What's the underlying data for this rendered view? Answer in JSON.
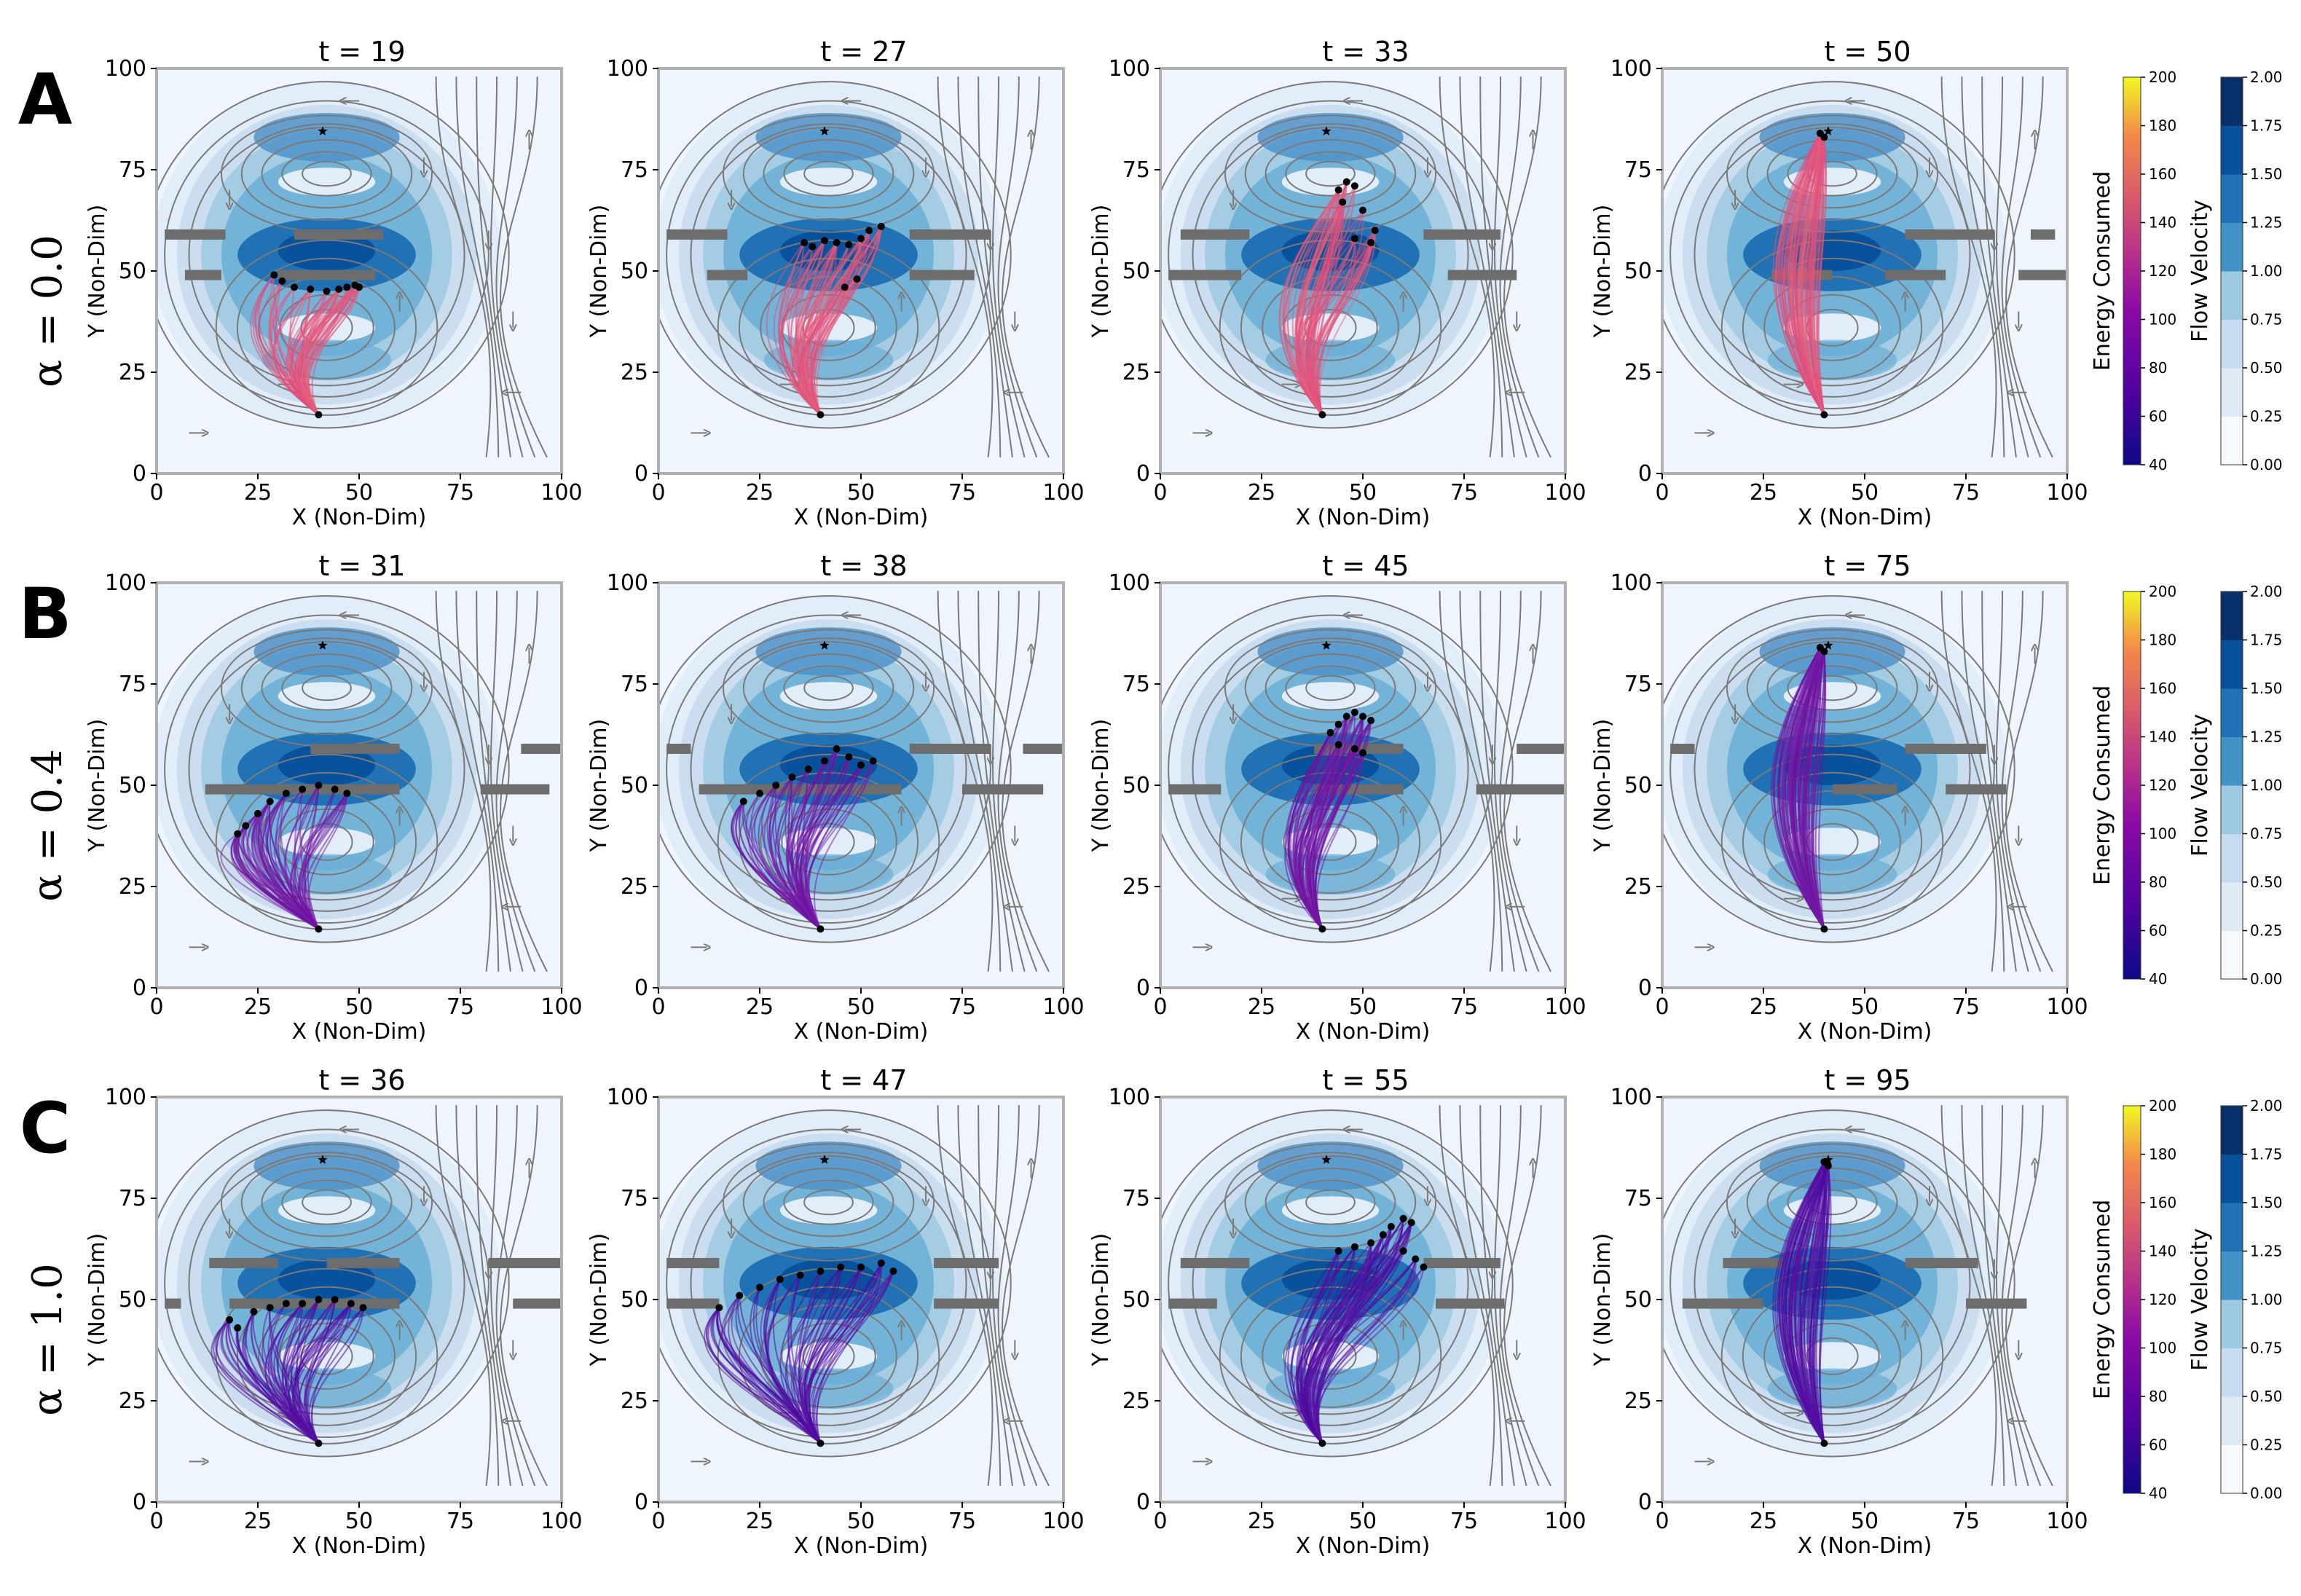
{
  "figure": {
    "xlabel": "X (Non-Dim)",
    "ylabel": "Y (Non-Dim)",
    "energy_colorbar_label": "Energy Consumed",
    "flow_colorbar_label": "Flow  Velocity",
    "energy_ticks": [
      "40",
      "60",
      "80",
      "100",
      "120",
      "140",
      "160",
      "180",
      "200"
    ],
    "flow_ticks": [
      "0.00",
      "0.25",
      "0.50",
      "0.75",
      "1.00",
      "1.25",
      "1.50",
      "1.75",
      "2.00"
    ],
    "axis_ticks": [
      "0",
      "25",
      "50",
      "75",
      "100"
    ]
  },
  "chart_data": [
    {
      "row": "A",
      "alpha_label": "α = 0.0",
      "type": "streamplot-trajectories",
      "xlim": [
        0,
        100
      ],
      "ylim": [
        0,
        100
      ],
      "start": [
        40,
        14.5
      ],
      "target": [
        41,
        84.5
      ],
      "colors": {
        "trajectory": "#de4f7e",
        "trajectory_alt": "#e8657a"
      },
      "panels": [
        {
          "title": "t = 19",
          "obstacles": [
            [
              2,
              17,
              59
            ],
            [
              34,
              56,
              59
            ],
            [
              7,
              16,
              49
            ],
            [
              30,
              54,
              49
            ]
          ],
          "front": [
            [
              29,
              49
            ],
            [
              31,
              47.5
            ],
            [
              34,
              46
            ],
            [
              38,
              45.5
            ],
            [
              42,
              45
            ],
            [
              45,
              45.5
            ],
            [
              47,
              46
            ],
            [
              49,
              46.5
            ],
            [
              50,
              46
            ]
          ],
          "fan_width": 11
        },
        {
          "title": "t = 27",
          "obstacles": [
            [
              2,
              17,
              59
            ],
            [
              62,
              82,
              59
            ],
            [
              12,
              22,
              49
            ],
            [
              62,
              78,
              49
            ]
          ],
          "front": [
            [
              36,
              57
            ],
            [
              38,
              56
            ],
            [
              41,
              57.5
            ],
            [
              44,
              57
            ],
            [
              47,
              56.5
            ],
            [
              50,
              58
            ],
            [
              52,
              60
            ],
            [
              55,
              61
            ],
            [
              49,
              48
            ],
            [
              46,
              46
            ]
          ],
          "fan_width": 13
        },
        {
          "title": "t = 33",
          "obstacles": [
            [
              5,
              22,
              59
            ],
            [
              65,
              84,
              59
            ],
            [
              102,
              103,
              59
            ],
            [
              2,
              20,
              49
            ],
            [
              71,
              88,
              49
            ]
          ],
          "front": [
            [
              44,
              70
            ],
            [
              46,
              72
            ],
            [
              48,
              71
            ],
            [
              45,
              67
            ],
            [
              50,
              65
            ],
            [
              53,
              60
            ],
            [
              48,
              58
            ],
            [
              52,
              57
            ]
          ],
          "fan_width": 16
        },
        {
          "title": "t = 50",
          "obstacles": [
            [
              60,
              82,
              59
            ],
            [
              91,
              97,
              59
            ],
            [
              27,
              42,
              49
            ],
            [
              55,
              70,
              49
            ],
            [
              88,
              100,
              49
            ]
          ],
          "front": [
            [
              39,
              84
            ],
            [
              40,
              83
            ]
          ],
          "fan_width": 18
        }
      ]
    },
    {
      "row": "B",
      "alpha_label": "α = 0.4",
      "type": "streamplot-trajectories",
      "xlim": [
        0,
        100
      ],
      "ylim": [
        0,
        100
      ],
      "start": [
        40,
        14.5
      ],
      "target": [
        41,
        84.5
      ],
      "colors": {
        "trajectory": "#6a13a1",
        "trajectory_alt": "#7b1fa8"
      },
      "panels": [
        {
          "title": "t = 31",
          "obstacles": [
            [
              38,
              60,
              59
            ],
            [
              90,
              100,
              59
            ],
            [
              12,
              60,
              49
            ],
            [
              80,
              97,
              49
            ]
          ],
          "front": [
            [
              20,
              38
            ],
            [
              22,
              40
            ],
            [
              25,
              43
            ],
            [
              28,
              46
            ],
            [
              32,
              48
            ],
            [
              36,
              49
            ],
            [
              40,
              50
            ],
            [
              44,
              49
            ],
            [
              47,
              48
            ]
          ],
          "fan_width": 12
        },
        {
          "title": "t = 38",
          "obstacles": [
            [
              2,
              8,
              59
            ],
            [
              62,
              82,
              59
            ],
            [
              90,
              100,
              59
            ],
            [
              10,
              60,
              49
            ],
            [
              75,
              95,
              49
            ]
          ],
          "front": [
            [
              21,
              46
            ],
            [
              25,
              48
            ],
            [
              29,
              50
            ],
            [
              33,
              52
            ],
            [
              37,
              54
            ],
            [
              41,
              56
            ],
            [
              44,
              59
            ],
            [
              47,
              57
            ],
            [
              50,
              55
            ],
            [
              53,
              56
            ]
          ],
          "fan_width": 12
        },
        {
          "title": "t = 45",
          "obstacles": [
            [
              38,
              60,
              59
            ],
            [
              88,
              100,
              59
            ],
            [
              2,
              15,
              49
            ],
            [
              38,
              60,
              49
            ],
            [
              78,
              100,
              49
            ]
          ],
          "front": [
            [
              42,
              63
            ],
            [
              44,
              65
            ],
            [
              46,
              67
            ],
            [
              48,
              68
            ],
            [
              50,
              67
            ],
            [
              52,
              66
            ],
            [
              44,
              60
            ],
            [
              48,
              59
            ],
            [
              50,
              58
            ]
          ],
          "fan_width": 14
        },
        {
          "title": "t = 75",
          "obstacles": [
            [
              2,
              8,
              59
            ],
            [
              60,
              80,
              59
            ],
            [
              42,
              58,
              49
            ],
            [
              70,
              85,
              49
            ]
          ],
          "front": [
            [
              39,
              84
            ],
            [
              40,
              83
            ]
          ],
          "fan_width": 16
        }
      ]
    },
    {
      "row": "C",
      "alpha_label": "α = 1.0",
      "type": "streamplot-trajectories",
      "xlim": [
        0,
        100
      ],
      "ylim": [
        0,
        100
      ],
      "start": [
        40,
        14.5
      ],
      "target": [
        41,
        84.5
      ],
      "colors": {
        "trajectory": "#4a0b9e",
        "trajectory_alt": "#6316a6"
      },
      "panels": [
        {
          "title": "t = 36",
          "obstacles": [
            [
              13,
              30,
              59
            ],
            [
              42,
              60,
              59
            ],
            [
              82,
              100,
              59
            ],
            [
              2,
              6,
              49
            ],
            [
              18,
              60,
              49
            ],
            [
              88,
              100,
              49
            ]
          ],
          "front": [
            [
              18,
              45
            ],
            [
              20,
              43
            ],
            [
              24,
              47
            ],
            [
              28,
              48
            ],
            [
              32,
              49
            ],
            [
              36,
              49
            ],
            [
              40,
              50
            ],
            [
              44,
              50
            ],
            [
              48,
              49
            ],
            [
              51,
              48
            ]
          ],
          "fan_width": 13
        },
        {
          "title": "t = 47",
          "obstacles": [
            [
              2,
              15,
              59
            ],
            [
              68,
              84,
              59
            ],
            [
              100,
              103,
              59
            ],
            [
              2,
              15,
              49
            ],
            [
              68,
              84,
              49
            ]
          ],
          "front": [
            [
              15,
              48
            ],
            [
              20,
              51
            ],
            [
              25,
              53
            ],
            [
              30,
              55
            ],
            [
              35,
              56
            ],
            [
              40,
              57
            ],
            [
              45,
              58
            ],
            [
              50,
              58
            ],
            [
              55,
              59
            ],
            [
              58,
              57
            ]
          ],
          "fan_width": 14
        },
        {
          "title": "t = 55",
          "obstacles": [
            [
              5,
              22,
              59
            ],
            [
              65,
              84,
              59
            ],
            [
              2,
              14,
              49
            ],
            [
              68,
              85,
              49
            ],
            [
              100,
              103,
              49
            ]
          ],
          "front": [
            [
              44,
              62
            ],
            [
              48,
              63
            ],
            [
              52,
              64
            ],
            [
              55,
              66
            ],
            [
              57,
              68
            ],
            [
              60,
              70
            ],
            [
              62,
              69
            ],
            [
              60,
              62
            ],
            [
              63,
              60
            ],
            [
              65,
              58
            ]
          ],
          "fan_width": 16
        },
        {
          "title": "t = 95",
          "obstacles": [
            [
              15,
              30,
              59
            ],
            [
              60,
              78,
              59
            ],
            [
              100,
              103,
              59
            ],
            [
              5,
              25,
              49
            ],
            [
              75,
              90,
              49
            ]
          ],
          "front": [
            [
              40,
              84
            ],
            [
              41,
              83
            ]
          ],
          "fan_width": 18
        }
      ]
    }
  ]
}
